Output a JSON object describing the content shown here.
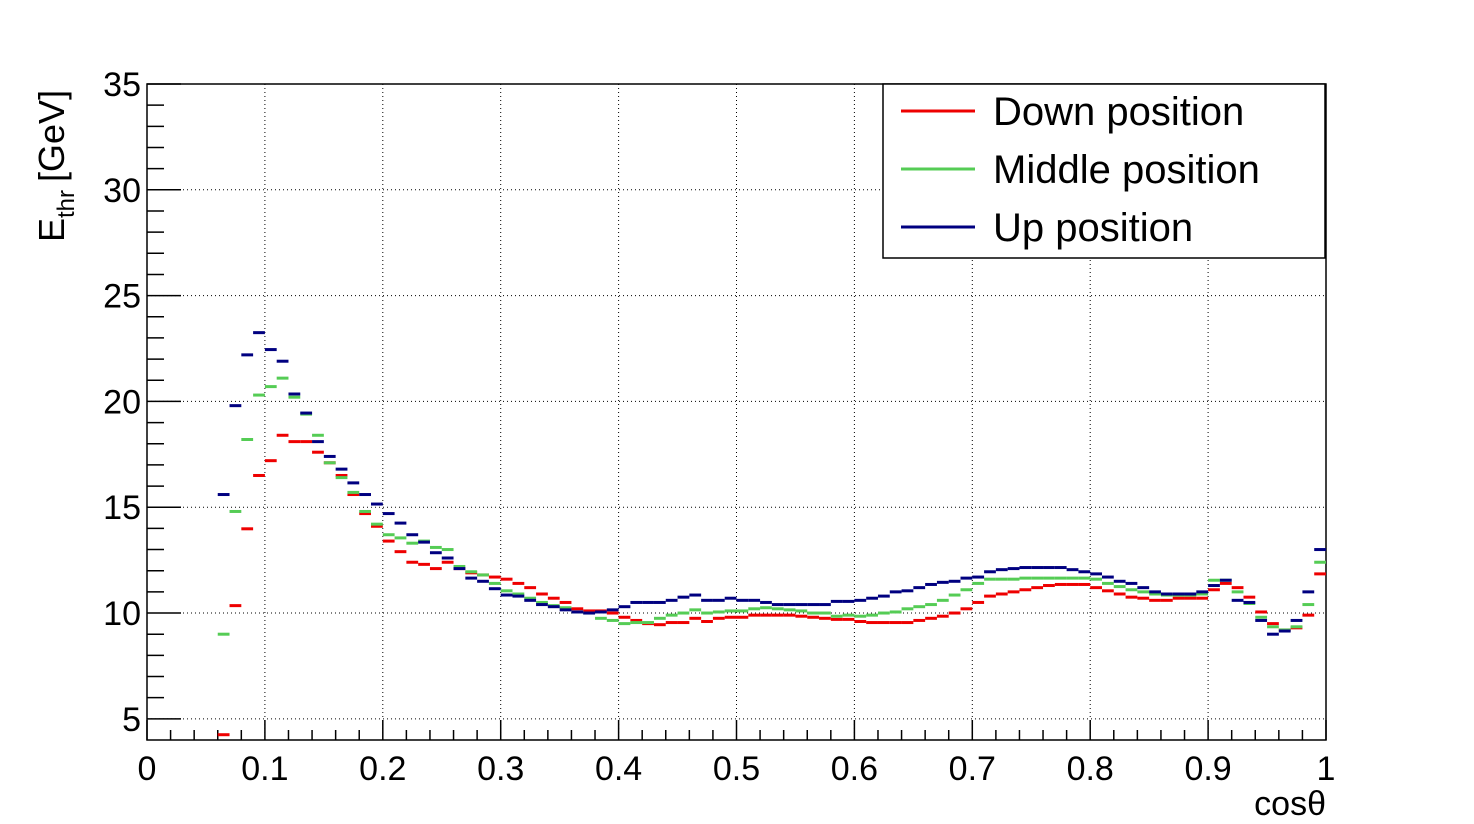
{
  "chart_data": {
    "type": "histogram",
    "x_label": "cosθ",
    "y_label": [
      "E",
      "thr",
      "[GeV]"
    ],
    "xlim": [
      0,
      1
    ],
    "ylim": [
      4,
      35
    ],
    "xticks": [
      0,
      0.1,
      0.2,
      0.3,
      0.4,
      0.5,
      0.6,
      0.7,
      0.8,
      0.9,
      1
    ],
    "yticks": [
      5,
      10,
      15,
      20,
      25,
      30,
      35
    ],
    "grid": true,
    "legend": "top-right",
    "bins": [
      0.06,
      0.07,
      0.08,
      0.09,
      0.1,
      0.11,
      0.12,
      0.13,
      0.14,
      0.15,
      0.16,
      0.17,
      0.18,
      0.19,
      0.2,
      0.21,
      0.22,
      0.23,
      0.24,
      0.25,
      0.26,
      0.27,
      0.28,
      0.29,
      0.3,
      0.31,
      0.32,
      0.33,
      0.34,
      0.35,
      0.36,
      0.37,
      0.38,
      0.39,
      0.4,
      0.41,
      0.42,
      0.43,
      0.44,
      0.45,
      0.46,
      0.47,
      0.48,
      0.49,
      0.5,
      0.51,
      0.52,
      0.53,
      0.54,
      0.55,
      0.56,
      0.57,
      0.58,
      0.59,
      0.6,
      0.61,
      0.62,
      0.63,
      0.64,
      0.65,
      0.66,
      0.67,
      0.68,
      0.69,
      0.7,
      0.71,
      0.72,
      0.73,
      0.74,
      0.75,
      0.76,
      0.77,
      0.78,
      0.79,
      0.8,
      0.81,
      0.82,
      0.83,
      0.84,
      0.85,
      0.86,
      0.87,
      0.88,
      0.89,
      0.9,
      0.91,
      0.92,
      0.93,
      0.94,
      0.95,
      0.96,
      0.97,
      0.98,
      0.99,
      1
    ],
    "series": [
      {
        "name": "Down position",
        "color": "#ee0000",
        "values": [
          4.25,
          10.35,
          13.98,
          16.5,
          17.2,
          18.4,
          18.1,
          18.1,
          17.6,
          17.1,
          16.5,
          15.6,
          14.7,
          14.1,
          13.4,
          12.9,
          12.4,
          12.3,
          12.1,
          12.4,
          12.1,
          11.9,
          11.8,
          11.7,
          11.6,
          11.4,
          11.2,
          10.9,
          10.7,
          10.5,
          10.2,
          10.1,
          10.1,
          10.0,
          9.8,
          9.65,
          9.5,
          9.45,
          9.55,
          9.55,
          9.75,
          9.6,
          9.75,
          9.8,
          9.8,
          9.9,
          9.9,
          9.9,
          9.9,
          9.85,
          9.8,
          9.75,
          9.7,
          9.7,
          9.6,
          9.55,
          9.55,
          9.55,
          9.55,
          9.65,
          9.75,
          9.85,
          10.0,
          10.2,
          10.5,
          10.8,
          10.9,
          11.0,
          11.1,
          11.2,
          11.3,
          11.35,
          11.35,
          11.35,
          11.2,
          11.05,
          10.9,
          10.75,
          10.7,
          10.6,
          10.6,
          10.7,
          10.7,
          10.7,
          11.1,
          11.4,
          11.2,
          10.75,
          10.05,
          9.5,
          9.2,
          9.3,
          9.9,
          11.85
        ]
      },
      {
        "name": "Middle position",
        "color": "#55cc55",
        "values": [
          9.0,
          14.8,
          18.2,
          20.3,
          20.7,
          21.1,
          20.2,
          19.4,
          18.4,
          17.1,
          16.4,
          15.7,
          14.8,
          14.2,
          13.7,
          13.55,
          13.3,
          13.4,
          13.1,
          13.0,
          12.2,
          11.95,
          11.8,
          11.4,
          11.05,
          10.9,
          10.7,
          10.5,
          10.35,
          10.25,
          10.05,
          10.0,
          9.75,
          9.65,
          9.5,
          9.55,
          9.55,
          9.75,
          9.9,
          10.0,
          10.15,
          10.0,
          10.05,
          10.1,
          10.1,
          10.2,
          10.25,
          10.2,
          10.15,
          10.1,
          10.0,
          10.0,
          9.85,
          9.9,
          9.85,
          9.9,
          10.0,
          10.05,
          10.2,
          10.3,
          10.4,
          10.6,
          10.85,
          11.1,
          11.4,
          11.6,
          11.6,
          11.6,
          11.65,
          11.65,
          11.65,
          11.65,
          11.65,
          11.65,
          11.6,
          11.4,
          11.25,
          11.1,
          11.0,
          10.9,
          10.85,
          10.85,
          10.85,
          10.9,
          11.55,
          11.55,
          11.0,
          10.45,
          9.8,
          9.35,
          9.2,
          9.35,
          10.4,
          12.4
        ]
      },
      {
        "name": "Up position",
        "color": "#000080",
        "values": [
          15.6,
          19.8,
          22.2,
          23.25,
          22.45,
          21.9,
          20.35,
          19.45,
          18.1,
          17.4,
          16.8,
          16.15,
          15.6,
          15.15,
          14.7,
          14.25,
          13.7,
          13.35,
          12.85,
          12.6,
          12.1,
          11.65,
          11.5,
          11.15,
          10.85,
          10.8,
          10.6,
          10.4,
          10.3,
          10.15,
          10.05,
          10.0,
          10.05,
          10.15,
          10.3,
          10.5,
          10.5,
          10.5,
          10.6,
          10.75,
          10.85,
          10.6,
          10.6,
          10.7,
          10.6,
          10.6,
          10.5,
          10.4,
          10.4,
          10.4,
          10.4,
          10.4,
          10.55,
          10.55,
          10.6,
          10.7,
          10.8,
          11.0,
          11.05,
          11.2,
          11.35,
          11.45,
          11.5,
          11.65,
          11.7,
          11.95,
          12.05,
          12.1,
          12.15,
          12.15,
          12.15,
          12.15,
          12.05,
          11.95,
          11.85,
          11.7,
          11.5,
          11.4,
          11.2,
          11.0,
          10.9,
          10.9,
          10.9,
          11.0,
          11.3,
          11.55,
          10.6,
          10.5,
          9.65,
          9.0,
          9.15,
          9.65,
          11.0,
          13.0
        ]
      }
    ]
  }
}
